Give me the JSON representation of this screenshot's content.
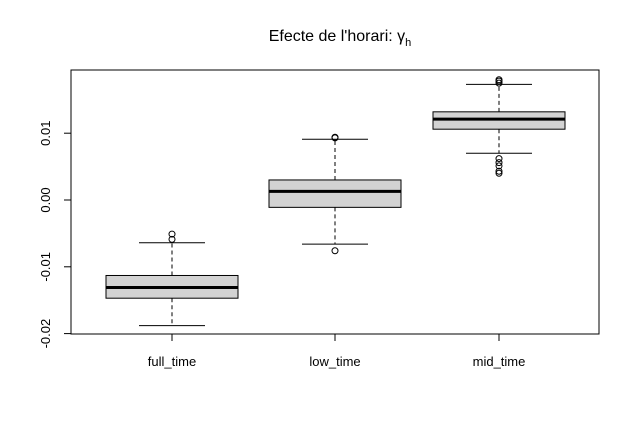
{
  "chart_data": {
    "type": "boxplot",
    "title": "Efecte de l'horari: γ",
    "title_subscript": "h",
    "xlabel": "",
    "ylabel": "",
    "ylim": [
      -0.0205,
      0.0195
    ],
    "yticks": [
      -0.02,
      -0.01,
      0.0,
      0.01
    ],
    "ytick_labels": [
      "-0.02",
      "-0.01",
      "0.00",
      "0.01"
    ],
    "box_fill": "#d3d3d3",
    "categories": [
      "full_time",
      "low_time",
      "mid_time"
    ],
    "boxes": [
      {
        "name": "full_time",
        "whisker_low": -0.0188,
        "q1": -0.0147,
        "median": -0.0131,
        "q3": -0.0113,
        "whisker_high": -0.0064,
        "outliers": [
          -0.0051,
          -0.0059
        ]
      },
      {
        "name": "low_time",
        "whisker_low": -0.0066,
        "q1": -0.0011,
        "median": 0.0013,
        "q3": 0.003,
        "whisker_high": 0.0091,
        "outliers": [
          0.0093,
          0.0094,
          -0.0076
        ]
      },
      {
        "name": "mid_time",
        "whisker_low": 0.007,
        "q1": 0.0106,
        "median": 0.0121,
        "q3": 0.0132,
        "whisker_high": 0.0173,
        "outliers": [
          0.0175,
          0.0178,
          0.018,
          0.0062,
          0.0056,
          0.0051,
          0.0043,
          0.004
        ]
      }
    ]
  }
}
